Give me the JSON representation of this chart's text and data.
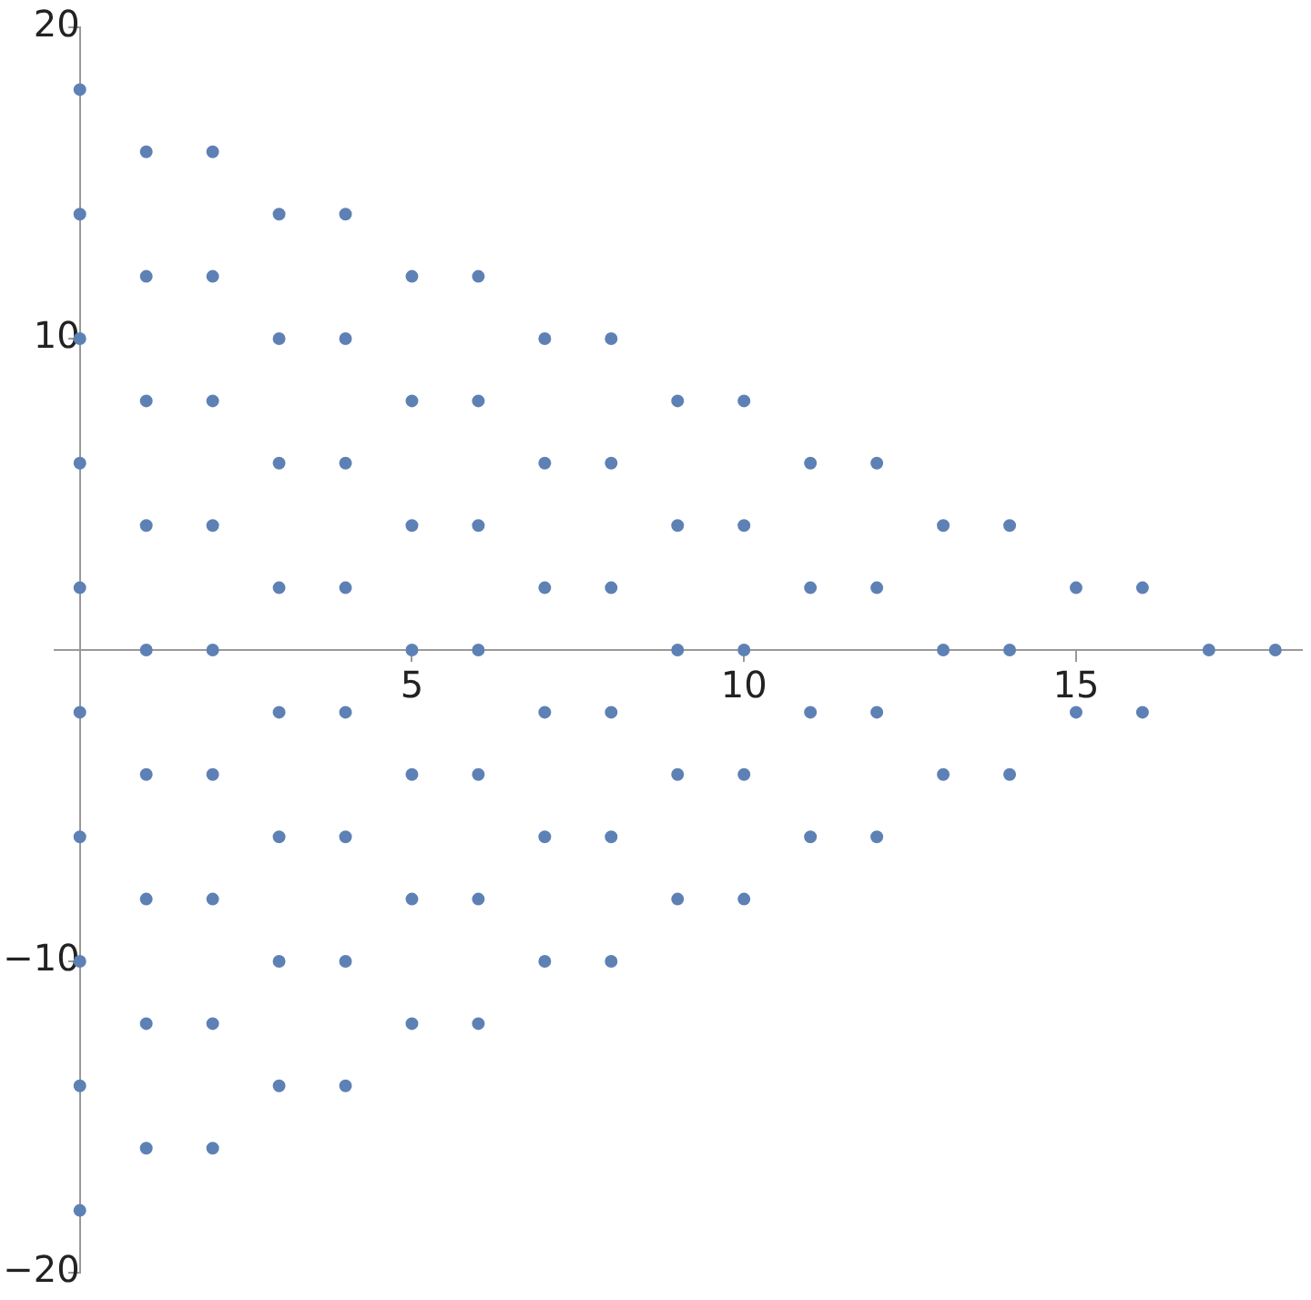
{
  "chart_data": {
    "type": "scatter",
    "x": [
      0,
      0,
      0,
      0,
      0,
      0,
      0,
      0,
      0,
      0,
      1,
      1,
      1,
      1,
      1,
      1,
      1,
      1,
      1,
      2,
      2,
      2,
      2,
      2,
      2,
      2,
      2,
      2,
      3,
      3,
      3,
      3,
      3,
      3,
      3,
      3,
      4,
      4,
      4,
      4,
      4,
      4,
      4,
      4,
      5,
      5,
      5,
      5,
      5,
      5,
      5,
      6,
      6,
      6,
      6,
      6,
      6,
      6,
      7,
      7,
      7,
      7,
      7,
      7,
      8,
      8,
      8,
      8,
      8,
      8,
      9,
      9,
      9,
      9,
      9,
      10,
      10,
      10,
      10,
      10,
      11,
      11,
      11,
      11,
      12,
      12,
      12,
      12,
      13,
      13,
      13,
      14,
      14,
      14,
      15,
      15,
      16,
      16,
      17,
      18
    ],
    "values": [
      18,
      14,
      10,
      6,
      2,
      -2,
      -6,
      -10,
      -14,
      -18,
      16,
      12,
      8,
      4,
      0,
      -4,
      -8,
      -12,
      -16,
      16,
      12,
      8,
      4,
      0,
      -4,
      -8,
      -12,
      -16,
      14,
      10,
      6,
      2,
      -2,
      -6,
      -10,
      -14,
      14,
      10,
      6,
      2,
      -2,
      -6,
      -10,
      -14,
      12,
      8,
      4,
      0,
      -4,
      -8,
      -12,
      12,
      8,
      4,
      0,
      -4,
      -8,
      -12,
      10,
      6,
      2,
      -2,
      -6,
      -10,
      10,
      6,
      2,
      -2,
      -6,
      -10,
      8,
      4,
      0,
      -4,
      -8,
      8,
      4,
      0,
      -4,
      -8,
      6,
      2,
      -2,
      -6,
      6,
      2,
      -2,
      -6,
      4,
      0,
      -4,
      4,
      0,
      -4,
      2,
      -2,
      2,
      -2,
      0,
      0
    ],
    "color": "#5e81b5",
    "marker": "circle",
    "xlim": [
      -0.38,
      18.4
    ],
    "ylim": [
      -20,
      20
    ],
    "xticks": [
      5,
      10,
      15
    ],
    "yticks": [
      -20,
      -10,
      10,
      20
    ],
    "grid": false,
    "legend": false
  }
}
